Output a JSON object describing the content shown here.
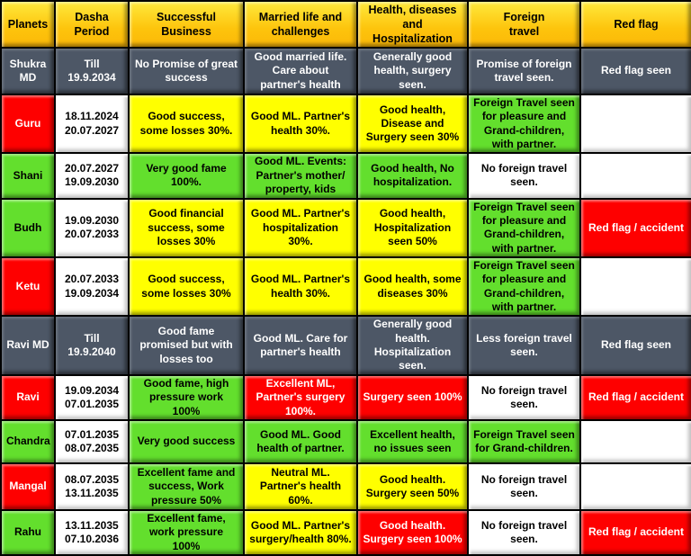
{
  "palette": {
    "header_gold_top": "#ffe93c",
    "header_gold_bottom": "#fcb808",
    "slate": "#4d5766",
    "red": "#fe0000",
    "green": "#63df2d",
    "yellow": "#ffff00",
    "white": "#ffffff",
    "grid": "#000000",
    "text_dark": "#000000",
    "text_light": "#ffffff"
  },
  "table": {
    "columns": [
      {
        "label": "Planets"
      },
      {
        "label": "Dasha\nPeriod"
      },
      {
        "label": "Successful\nBusiness"
      },
      {
        "label": "Married life and\nchallenges"
      },
      {
        "label": "Health, diseases and\nHospitalization"
      },
      {
        "label": "Foreign\ntravel"
      },
      {
        "label": "Red flag"
      }
    ],
    "rows": [
      {
        "planet": "Shukra MD",
        "planet_style": "slate",
        "cells": [
          {
            "text": "Till\n19.9.2034",
            "style": "slate"
          },
          {
            "text": "No Promise of great success",
            "style": "slate"
          },
          {
            "text": "Good married life. Care about partner's health",
            "style": "slate"
          },
          {
            "text": "Generally good health, surgery seen.",
            "style": "slate"
          },
          {
            "text": "Promise of foreign travel seen.",
            "style": "slate"
          },
          {
            "text": "Red flag seen",
            "style": "slate"
          }
        ]
      },
      {
        "planet": "Guru",
        "planet_style": "red",
        "cells": [
          {
            "text": "18.11.2024\n20.07.2027",
            "style": "white"
          },
          {
            "text": "Good success, some losses 30%.",
            "style": "yellow"
          },
          {
            "text": "Good ML. Partner's health 30%.",
            "style": "yellow"
          },
          {
            "text": "Good health, Disease and Surgery seen 30%",
            "style": "yellow"
          },
          {
            "text": "Foreign Travel seen for pleasure and Grand-children, with partner.",
            "style": "green"
          },
          {
            "text": "",
            "style": "white"
          }
        ]
      },
      {
        "planet": "Shani",
        "planet_style": "green",
        "cells": [
          {
            "text": "20.07.2027\n19.09.2030",
            "style": "white"
          },
          {
            "text": "Very good fame 100%.",
            "style": "green"
          },
          {
            "text": "Good ML. Events: Partner's mother/ property, kids",
            "style": "green"
          },
          {
            "text": "Good health, No hospitalization.",
            "style": "green"
          },
          {
            "text": "No foreign travel seen.",
            "style": "white"
          },
          {
            "text": "",
            "style": "white"
          }
        ]
      },
      {
        "planet": "Budh",
        "planet_style": "green",
        "cells": [
          {
            "text": "19.09.2030\n20.07.2033",
            "style": "white"
          },
          {
            "text": "Good financial success, some losses 30%",
            "style": "yellow"
          },
          {
            "text": "Good ML. Partner's hospitalization 30%.",
            "style": "yellow"
          },
          {
            "text": "Good health, Hospitalization seen 50%",
            "style": "yellow"
          },
          {
            "text": "Foreign Travel seen for pleasure and Grand-children, with partner.",
            "style": "green"
          },
          {
            "text": "Red flag / accident",
            "style": "red"
          }
        ]
      },
      {
        "planet": "Ketu",
        "planet_style": "red",
        "cells": [
          {
            "text": "20.07.2033\n19.09.2034",
            "style": "white"
          },
          {
            "text": "Good success, some losses 30%",
            "style": "yellow"
          },
          {
            "text": "Good ML. Partner's health 30%.",
            "style": "yellow"
          },
          {
            "text": "Good health, some diseases 30%",
            "style": "yellow"
          },
          {
            "text": "Foreign Travel seen for pleasure and Grand-children, with partner.",
            "style": "green"
          },
          {
            "text": "",
            "style": "white"
          }
        ]
      },
      {
        "planet": "Ravi MD",
        "planet_style": "slate",
        "cells": [
          {
            "text": "Till\n19.9.2040",
            "style": "slate"
          },
          {
            "text": "Good fame promised but with losses too",
            "style": "slate"
          },
          {
            "text": "Good ML. Care for partner's health",
            "style": "slate"
          },
          {
            "text": "Generally good health. Hospitalization seen.",
            "style": "slate"
          },
          {
            "text": "Less foreign travel seen.",
            "style": "slate"
          },
          {
            "text": "Red flag seen",
            "style": "slate"
          }
        ]
      },
      {
        "planet": "Ravi",
        "planet_style": "red",
        "cells": [
          {
            "text": "19.09.2034\n07.01.2035",
            "style": "white"
          },
          {
            "text": "Good fame, high pressure work 100%",
            "style": "green"
          },
          {
            "text": "Excellent ML, Partner's surgery 100%.",
            "style": "red"
          },
          {
            "text": "Surgery seen 100%",
            "style": "red"
          },
          {
            "text": "No foreign travel seen.",
            "style": "white"
          },
          {
            "text": "Red flag / accident",
            "style": "red"
          }
        ]
      },
      {
        "planet": "Chandra",
        "planet_style": "green",
        "cells": [
          {
            "text": "07.01.2035\n08.07.2035",
            "style": "white"
          },
          {
            "text": "Very good success",
            "style": "green"
          },
          {
            "text": "Good ML. Good health of partner.",
            "style": "green"
          },
          {
            "text": "Excellent health, no issues seen",
            "style": "green"
          },
          {
            "text": "Foreign Travel seen for Grand-children.",
            "style": "green"
          },
          {
            "text": "",
            "style": "white"
          }
        ]
      },
      {
        "planet": "Mangal",
        "planet_style": "red",
        "cells": [
          {
            "text": "08.07.2035\n13.11.2035",
            "style": "white"
          },
          {
            "text": "Excellent fame and success, Work pressure 50%",
            "style": "green"
          },
          {
            "text": "Neutral ML. Partner's health 60%.",
            "style": "yellow"
          },
          {
            "text": "Good health. Surgery seen 50%",
            "style": "yellow"
          },
          {
            "text": "No foreign travel seen.",
            "style": "white"
          },
          {
            "text": "",
            "style": "white"
          }
        ]
      },
      {
        "planet": "Rahu",
        "planet_style": "green",
        "cells": [
          {
            "text": "13.11.2035\n07.10.2036",
            "style": "white"
          },
          {
            "text": "Excellent fame, work pressure 100%",
            "style": "green"
          },
          {
            "text": "Good ML. Partner's surgery/health 80%.",
            "style": "yellow"
          },
          {
            "text": "Good health. Surgery seen 100%",
            "style": "red"
          },
          {
            "text": "No foreign travel seen.",
            "style": "white"
          },
          {
            "text": "Red flag / accident",
            "style": "red"
          }
        ]
      }
    ]
  }
}
